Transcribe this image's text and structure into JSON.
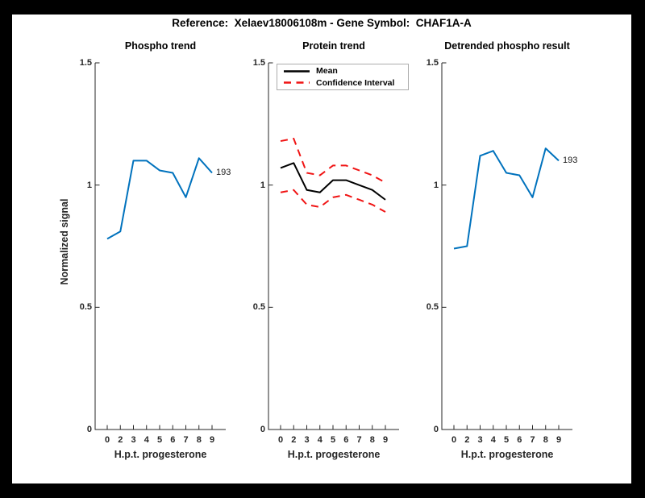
{
  "title": "Reference:  Xelaev18006108m - Gene Symbol:  CHAF1A-A",
  "colors": {
    "background": "#000000",
    "canvas": "#ffffff",
    "blue": "#0072BD",
    "red": "#F01414",
    "black": "#000000",
    "axis": "#262626"
  },
  "chart_data": [
    {
      "type": "line",
      "title": "Phospho trend",
      "xlabel": "H.p.t. progesterone",
      "ylabel": "Normalized signal",
      "x": [
        0,
        2,
        3,
        4,
        5,
        6,
        7,
        8,
        9
      ],
      "x_tick_labels": [
        "0",
        "2",
        "3",
        "4",
        "5",
        "6",
        "7",
        "8",
        "9"
      ],
      "yticks": [
        0,
        0.5,
        1,
        1.5
      ],
      "ytick_labels": [
        "0",
        "0.5",
        "1",
        "1.5"
      ],
      "ylim": [
        0,
        1.5
      ],
      "grid": false,
      "series": [
        {
          "id": "phospho-line",
          "name": "Phospho trend",
          "color": "#0072BD",
          "style": "solid",
          "values": [
            0.78,
            0.81,
            1.1,
            1.1,
            1.06,
            1.05,
            0.95,
            1.11,
            1.05
          ]
        }
      ],
      "end_label": "193"
    },
    {
      "type": "line",
      "title": "Protein trend",
      "xlabel": "H.p.t. progesterone",
      "x": [
        0,
        2,
        3,
        4,
        5,
        6,
        7,
        8,
        9
      ],
      "x_tick_labels": [
        "0",
        "2",
        "3",
        "4",
        "5",
        "6",
        "7",
        "8",
        "9"
      ],
      "yticks": [
        0,
        0.5,
        1,
        1.5
      ],
      "ytick_labels": [
        "0",
        "0.5",
        "1",
        "1.5"
      ],
      "ylim": [
        0,
        1.5
      ],
      "grid": false,
      "legend": [
        "Mean",
        "Confidence Interval"
      ],
      "legend_position": "northwest",
      "series": [
        {
          "id": "mean-line",
          "name": "Mean",
          "color": "#000000",
          "style": "solid",
          "values": [
            1.07,
            1.09,
            0.98,
            0.97,
            1.02,
            1.02,
            1.0,
            0.98,
            0.94
          ]
        },
        {
          "id": "ci-upper-line",
          "name": "Confidence Interval (upper)",
          "color": "#F01414",
          "style": "dashed",
          "values": [
            1.18,
            1.19,
            1.05,
            1.04,
            1.08,
            1.08,
            1.06,
            1.04,
            1.01
          ]
        },
        {
          "id": "ci-lower-line",
          "name": "Confidence Interval (lower)",
          "color": "#F01414",
          "style": "dashed",
          "values": [
            0.97,
            0.98,
            0.92,
            0.91,
            0.95,
            0.96,
            0.94,
            0.92,
            0.89
          ]
        }
      ]
    },
    {
      "type": "line",
      "title": "Detrended phospho result",
      "xlabel": "H.p.t. progesterone",
      "x": [
        0,
        2,
        3,
        4,
        5,
        6,
        7,
        8,
        9
      ],
      "x_tick_labels": [
        "0",
        "2",
        "3",
        "4",
        "5",
        "6",
        "7",
        "8",
        "9"
      ],
      "yticks": [
        0,
        0.5,
        1,
        1.5
      ],
      "ytick_labels": [
        "0",
        "0.5",
        "1",
        "1.5"
      ],
      "ylim": [
        0,
        1.5
      ],
      "grid": false,
      "series": [
        {
          "id": "detrended-line",
          "name": "Detrended phospho result",
          "color": "#0072BD",
          "style": "solid",
          "values": [
            0.74,
            0.75,
            1.12,
            1.14,
            1.05,
            1.04,
            0.95,
            1.15,
            1.1
          ]
        }
      ],
      "end_label": "193"
    }
  ]
}
